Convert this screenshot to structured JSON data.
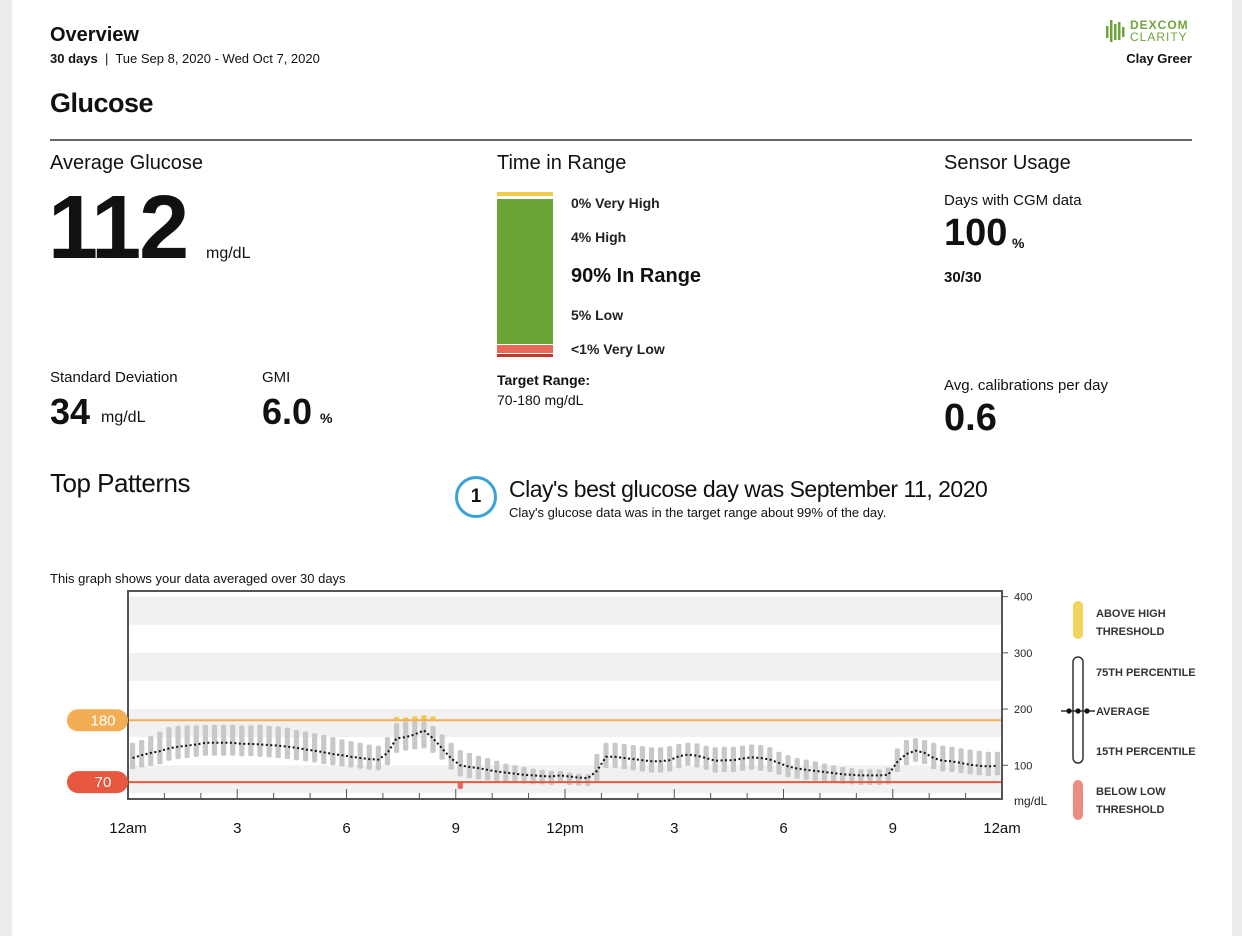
{
  "header": {
    "title": "Overview",
    "days": "30 days",
    "date_range": "Tue Sep 8, 2020 - Wed Oct 7, 2020",
    "brand_line1": "DEXCOM",
    "brand_line2": "CLARITY",
    "patient_name": "Clay Greer"
  },
  "section_title": "Glucose",
  "average_glucose": {
    "label": "Average Glucose",
    "value": "112",
    "unit": "mg/dL"
  },
  "std_dev": {
    "label": "Standard Deviation",
    "value": "34",
    "unit": "mg/dL"
  },
  "gmi": {
    "label": "GMI",
    "value": "6.0",
    "unit": "%"
  },
  "time_in_range": {
    "label": "Time in Range",
    "very_high": "0% Very High",
    "high": "4% High",
    "in_range": "90% In Range",
    "low": "5% Low",
    "very_low": "<1% Very Low",
    "target_label": "Target Range:",
    "target_value": "70-180 mg/dL",
    "colors": {
      "very_high": "#f3c94c",
      "high": "#f3c94c",
      "in_range": "#6aa535",
      "low": "#e8685a",
      "very_low": "#c0392b"
    }
  },
  "sensor_usage": {
    "label": "Sensor Usage",
    "days_label": "Days with CGM data",
    "days_value": "100",
    "days_unit": "%",
    "days_fraction": "30/30",
    "calib_label": "Avg. calibrations per day",
    "calib_value": "0.6"
  },
  "top_patterns": {
    "label": "Top Patterns",
    "number": "1",
    "title": "Clay's best glucose day was September 11, 2020",
    "subtitle": "Clay's glucose data was in the target range about 99% of the day."
  },
  "graph_note": "This graph shows your data averaged over 30 days",
  "chart_data": {
    "type": "line",
    "x_tick_labels": [
      "12am",
      "3",
      "6",
      "9",
      "12pm",
      "3",
      "6",
      "9",
      "12am"
    ],
    "y_tick_labels": [
      "400",
      "300",
      "200",
      "100"
    ],
    "y_unit": "mg/dL",
    "ylim": [
      40,
      410
    ],
    "xlim_hours": [
      0,
      24
    ],
    "high_threshold": {
      "label": "180",
      "value": 180,
      "color": "#f2ad55"
    },
    "low_threshold": {
      "label": "70",
      "value": 70,
      "color": "#e8573f"
    },
    "legend": {
      "above": "ABOVE HIGH THRESHOLD",
      "p75": "75TH PERCENTILE",
      "average": "AVERAGE",
      "p15": "15TH PERCENTILE",
      "below": "BELOW LOW THRESHOLD"
    },
    "hours": [
      0,
      0.25,
      0.5,
      0.75,
      1,
      1.25,
      1.5,
      1.75,
      2,
      2.25,
      2.5,
      2.75,
      3,
      3.25,
      3.5,
      3.75,
      4,
      4.25,
      4.5,
      4.75,
      5,
      5.25,
      5.5,
      5.75,
      6,
      6.25,
      6.5,
      6.75,
      7,
      7.25,
      7.5,
      7.75,
      8,
      8.25,
      8.5,
      8.75,
      9,
      9.25,
      9.5,
      9.75,
      10,
      10.25,
      10.5,
      10.75,
      11,
      11.25,
      11.5,
      11.75,
      12,
      12.25,
      12.5,
      12.75,
      13,
      13.25,
      13.5,
      13.75,
      14,
      14.25,
      14.5,
      14.75,
      15,
      15.25,
      15.5,
      15.75,
      16,
      16.25,
      16.5,
      16.75,
      17,
      17.25,
      17.5,
      17.75,
      18,
      18.25,
      18.5,
      18.75,
      19,
      19.25,
      19.5,
      19.75,
      20,
      20.25,
      20.5,
      20.75,
      21,
      21.25,
      21.5,
      21.75,
      22,
      22.25,
      22.5,
      22.75,
      23,
      23.25,
      23.5,
      23.75
    ],
    "average": [
      113,
      118,
      122,
      125,
      130,
      133,
      135,
      137,
      140,
      140,
      140,
      140,
      138,
      138,
      137,
      136,
      135,
      133,
      131,
      128,
      126,
      123,
      120,
      118,
      115,
      113,
      111,
      110,
      122,
      148,
      150,
      155,
      162,
      148,
      130,
      112,
      100,
      97,
      95,
      92,
      89,
      87,
      85,
      83,
      82,
      81,
      80,
      82,
      80,
      78,
      77,
      90,
      115,
      115,
      113,
      111,
      109,
      107,
      107,
      109,
      116,
      119,
      117,
      113,
      108,
      109,
      109,
      112,
      114,
      113,
      110,
      104,
      98,
      94,
      92,
      90,
      88,
      86,
      84,
      83,
      82,
      82,
      82,
      83,
      106,
      120,
      126,
      122,
      113,
      108,
      107,
      104,
      101,
      99,
      98,
      99,
      101,
      103,
      104,
      104
    ],
    "p75": [
      140,
      145,
      152,
      160,
      168,
      170,
      171,
      171,
      172,
      172,
      172,
      172,
      171,
      171,
      172,
      170,
      169,
      167,
      163,
      160,
      157,
      154,
      150,
      146,
      143,
      140,
      137,
      135,
      150,
      175,
      178,
      183,
      178,
      170,
      155,
      140,
      127,
      122,
      117,
      113,
      108,
      103,
      100,
      97,
      94,
      92,
      90,
      90,
      87,
      85,
      84,
      120,
      140,
      140,
      138,
      136,
      134,
      132,
      132,
      134,
      138,
      140,
      139,
      135,
      132,
      133,
      133,
      135,
      137,
      136,
      132,
      124,
      118,
      113,
      110,
      107,
      103,
      100,
      97,
      95,
      93,
      93,
      93,
      96,
      130,
      145,
      148,
      145,
      140,
      135,
      133,
      130,
      128,
      126,
      124,
      124,
      126,
      128,
      130,
      131
    ],
    "p15": [
      93,
      96,
      99,
      102,
      108,
      111,
      113,
      115,
      117,
      117,
      117,
      117,
      116,
      116,
      115,
      114,
      113,
      111,
      109,
      107,
      105,
      102,
      100,
      98,
      96,
      94,
      92,
      91,
      100,
      122,
      126,
      128,
      130,
      122,
      110,
      92,
      80,
      77,
      75,
      73,
      71,
      69,
      68,
      67,
      66,
      66,
      65,
      68,
      65,
      64,
      63,
      72,
      95,
      95,
      93,
      91,
      89,
      87,
      87,
      89,
      95,
      99,
      96,
      92,
      87,
      88,
      88,
      90,
      92,
      90,
      88,
      83,
      79,
      76,
      74,
      72,
      70,
      69,
      67,
      66,
      65,
      65,
      65,
      66,
      88,
      100,
      106,
      102,
      93,
      89,
      88,
      86,
      84,
      82,
      81,
      82,
      84,
      86,
      87,
      87
    ],
    "above_hours": [
      7.25,
      7.5,
      7.75,
      8,
      8.25
    ],
    "above_tops": [
      186,
      185,
      187,
      189,
      187
    ],
    "below_hours": [
      9
    ],
    "below_bottoms": [
      58
    ]
  }
}
